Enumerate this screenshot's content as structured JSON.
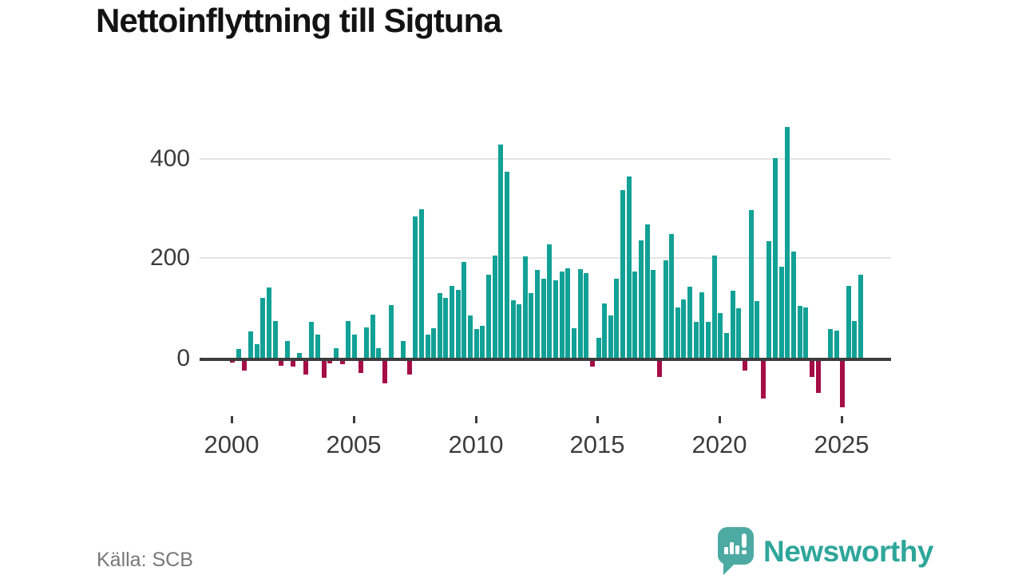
{
  "title": "Nettoinflyttning till Sigtuna",
  "source": "Källa: SCB",
  "branding": {
    "name": "Newsworthy"
  },
  "colors": {
    "positive": "#12a196",
    "negative": "#a50d45",
    "axis": "#3c3c3c",
    "grid": "#e4e4e4",
    "tick_text": "#3c3c3c",
    "source_text": "#787878",
    "brand_icon": "#4caaa2",
    "brand_text": "#2ea69b",
    "title_text": "#131313"
  },
  "chart_data": {
    "type": "bar",
    "title": "Nettoinflyttning till Sigtuna",
    "xlabel": "",
    "ylabel": "",
    "period": "quarterly",
    "start_period": "2000 Q1",
    "end_period": "2025 Q4",
    "x_tick_labels": [
      "2000",
      "2005",
      "2010",
      "2015",
      "2020",
      "2025"
    ],
    "y_tick_labels": [
      "400",
      "200",
      "0"
    ],
    "ylim": [
      -110,
      480
    ],
    "grid": "horizontal",
    "legend": "none",
    "positive_color": "#12a196",
    "negative_color": "#a50d45",
    "values": [
      -7,
      20,
      -22,
      55,
      30,
      122,
      143,
      77,
      -12,
      37,
      -15,
      12,
      -31,
      75,
      50,
      -36,
      -8,
      22,
      -10,
      77,
      49,
      -27,
      64,
      89,
      22,
      -48,
      108,
      2,
      36,
      -30,
      284,
      299,
      50,
      62,
      132,
      122,
      147,
      138,
      194,
      88,
      60,
      67,
      169,
      206,
      428,
      373,
      117,
      109,
      205,
      132,
      178,
      160,
      229,
      158,
      175,
      182,
      62,
      179,
      171,
      -14,
      43,
      112,
      88,
      161,
      337,
      364,
      175,
      237,
      268,
      178,
      -35,
      197,
      249,
      103,
      119,
      145,
      74,
      133,
      75,
      207,
      92,
      53,
      137,
      101,
      -23,
      297,
      116,
      -78,
      235,
      401,
      184,
      463,
      214,
      106,
      104,
      -35,
      -67,
      2,
      60,
      58,
      -95,
      146,
      76,
      169
    ]
  }
}
